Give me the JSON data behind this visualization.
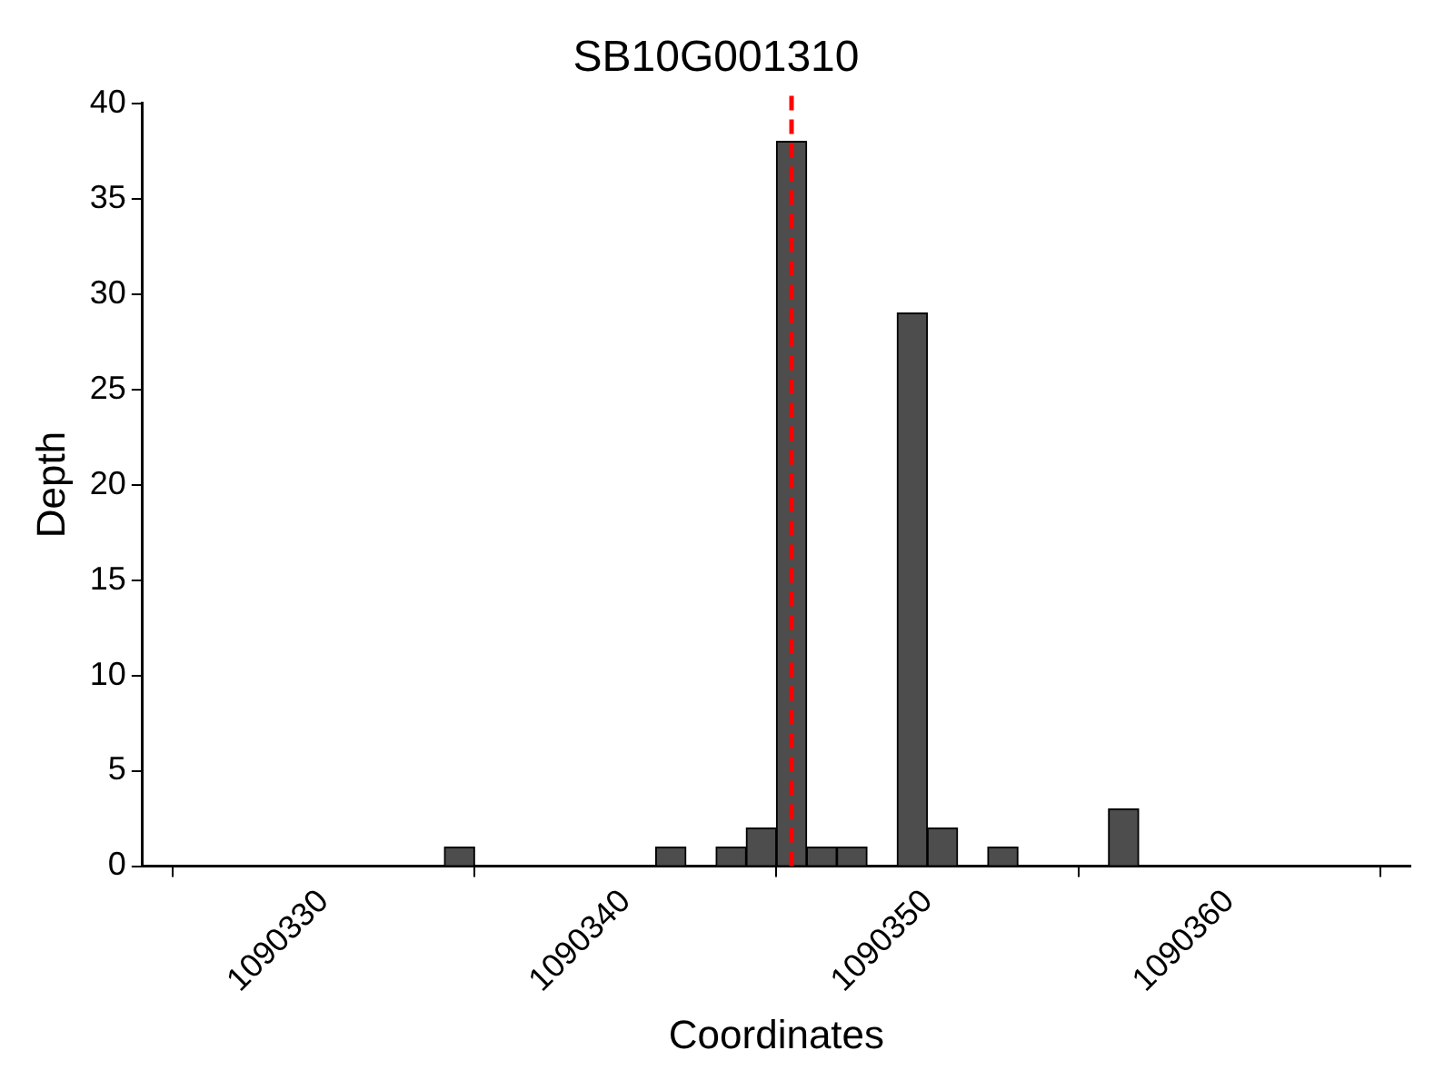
{
  "chart_data": {
    "type": "histogram",
    "title": "SB10G001310",
    "xlabel": "Coordinates",
    "ylabel": "Depth",
    "bins": [
      1090334,
      1090335,
      1090336,
      1090337,
      1090338,
      1090339,
      1090340,
      1090341,
      1090342,
      1090343,
      1090344,
      1090345,
      1090346,
      1090347,
      1090348,
      1090349,
      1090350,
      1090351,
      1090352,
      1090353,
      1090354,
      1090355,
      1090356,
      1090357
    ],
    "values": [
      1,
      0,
      0,
      0,
      0,
      0,
      0,
      1,
      0,
      1,
      2,
      38,
      1,
      1,
      0,
      29,
      2,
      0,
      1,
      0,
      0,
      0,
      3
    ],
    "color": "#4d4d4d",
    "xlim": [
      1090324,
      1090366
    ],
    "xticks": [
      1090330,
      1090340,
      1090350,
      1090360
    ],
    "ylim": [
      0,
      40
    ],
    "yticks": [
      0,
      5,
      10,
      15,
      20,
      25,
      30,
      35,
      40
    ],
    "ref_lines": [
      {
        "axis": "x",
        "value": 1090345.5,
        "color": "#ff0000",
        "line_style": "dashed"
      }
    ],
    "grid": false,
    "legend": false
  }
}
